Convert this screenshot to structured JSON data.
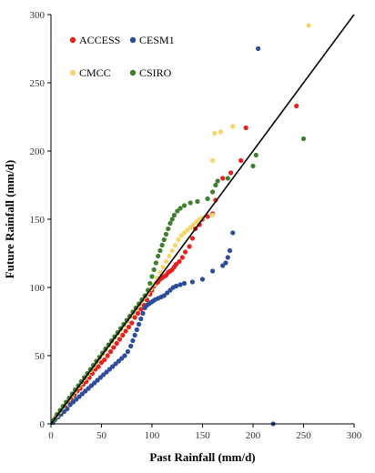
{
  "chart_data": {
    "type": "scatter",
    "xlabel": "Past Rainfall (mm/d)",
    "ylabel": "Future Rainfall (mm/d)",
    "xlim": [
      0,
      300
    ],
    "ylim": [
      0,
      300
    ],
    "xticks": [
      "0",
      "50",
      "100",
      "150",
      "200",
      "250",
      "300"
    ],
    "yticks": [
      "0",
      "50",
      "100",
      "150",
      "200",
      "250",
      "300"
    ],
    "grid": false,
    "legend_placement": "top-left",
    "reference_line": {
      "x": [
        0,
        300
      ],
      "y": [
        0,
        300
      ],
      "color": "#000000"
    },
    "series": [
      {
        "name": "ACCESS",
        "color": "#e8201f",
        "points": [
          [
            2,
            2
          ],
          [
            5,
            5
          ],
          [
            8,
            7
          ],
          [
            11,
            10
          ],
          [
            14,
            13
          ],
          [
            17,
            16
          ],
          [
            20,
            18
          ],
          [
            23,
            21
          ],
          [
            26,
            24
          ],
          [
            29,
            26
          ],
          [
            32,
            29
          ],
          [
            35,
            31
          ],
          [
            38,
            34
          ],
          [
            41,
            37
          ],
          [
            44,
            40
          ],
          [
            47,
            42
          ],
          [
            50,
            45
          ],
          [
            53,
            47
          ],
          [
            56,
            50
          ],
          [
            59,
            53
          ],
          [
            62,
            56
          ],
          [
            65,
            59
          ],
          [
            68,
            62
          ],
          [
            71,
            65
          ],
          [
            74,
            68
          ],
          [
            77,
            71
          ],
          [
            80,
            74
          ],
          [
            83,
            78
          ],
          [
            86,
            81
          ],
          [
            89,
            84
          ],
          [
            92,
            87
          ],
          [
            95,
            91
          ],
          [
            98,
            95
          ],
          [
            100,
            98
          ],
          [
            102,
            101
          ],
          [
            104,
            103
          ],
          [
            106,
            104
          ],
          [
            108,
            106
          ],
          [
            110,
            107
          ],
          [
            112,
            108
          ],
          [
            114,
            109
          ],
          [
            116,
            111
          ],
          [
            118,
            112
          ],
          [
            120,
            113
          ],
          [
            122,
            115
          ],
          [
            124,
            117
          ],
          [
            127,
            119
          ],
          [
            130,
            122
          ],
          [
            133,
            126
          ],
          [
            137,
            130
          ],
          [
            140,
            136
          ],
          [
            143,
            143
          ],
          [
            147,
            146
          ],
          [
            150,
            150
          ],
          [
            155,
            152
          ],
          [
            160,
            154
          ],
          [
            163,
            164
          ],
          [
            170,
            180
          ],
          [
            178,
            184
          ],
          [
            188,
            193
          ],
          [
            193,
            217
          ],
          [
            243,
            233
          ]
        ]
      },
      {
        "name": "CESM1",
        "color": "#2b4d9c",
        "points": [
          [
            2,
            1
          ],
          [
            4,
            3
          ],
          [
            7,
            5
          ],
          [
            10,
            7
          ],
          [
            13,
            9
          ],
          [
            16,
            11
          ],
          [
            19,
            14
          ],
          [
            22,
            16
          ],
          [
            25,
            18
          ],
          [
            28,
            20
          ],
          [
            31,
            22
          ],
          [
            34,
            24
          ],
          [
            37,
            26
          ],
          [
            40,
            28
          ],
          [
            43,
            30
          ],
          [
            46,
            32
          ],
          [
            49,
            34
          ],
          [
            52,
            36
          ],
          [
            55,
            38
          ],
          [
            58,
            40
          ],
          [
            61,
            42
          ],
          [
            64,
            44
          ],
          [
            67,
            46
          ],
          [
            70,
            48
          ],
          [
            73,
            50
          ],
          [
            76,
            53
          ],
          [
            79,
            57
          ],
          [
            81,
            61
          ],
          [
            83,
            65
          ],
          [
            85,
            69
          ],
          [
            87,
            73
          ],
          [
            89,
            77
          ],
          [
            91,
            81
          ],
          [
            93,
            85
          ],
          [
            95,
            87
          ],
          [
            97,
            88
          ],
          [
            99,
            89
          ],
          [
            101,
            90
          ],
          [
            103,
            91
          ],
          [
            106,
            92
          ],
          [
            109,
            93
          ],
          [
            112,
            94
          ],
          [
            115,
            96
          ],
          [
            118,
            98
          ],
          [
            121,
            100
          ],
          [
            124,
            101
          ],
          [
            128,
            102
          ],
          [
            132,
            103
          ],
          [
            140,
            104
          ],
          [
            150,
            106
          ],
          [
            160,
            112
          ],
          [
            170,
            116
          ],
          [
            173,
            118
          ],
          [
            175,
            122
          ],
          [
            177,
            127
          ],
          [
            180,
            140
          ],
          [
            205,
            275
          ],
          [
            220,
            0
          ]
        ]
      },
      {
        "name": "CMCC",
        "color": "#f6d66a",
        "points": [
          [
            3,
            3
          ],
          [
            6,
            6
          ],
          [
            9,
            9
          ],
          [
            12,
            12
          ],
          [
            15,
            15
          ],
          [
            18,
            18
          ],
          [
            21,
            21
          ],
          [
            24,
            24
          ],
          [
            27,
            27
          ],
          [
            30,
            30
          ],
          [
            33,
            33
          ],
          [
            36,
            36
          ],
          [
            39,
            39
          ],
          [
            42,
            42
          ],
          [
            45,
            45
          ],
          [
            48,
            48
          ],
          [
            51,
            51
          ],
          [
            54,
            54
          ],
          [
            57,
            57
          ],
          [
            60,
            60
          ],
          [
            63,
            63
          ],
          [
            66,
            66
          ],
          [
            69,
            69
          ],
          [
            72,
            72
          ],
          [
            75,
            75
          ],
          [
            78,
            78
          ],
          [
            81,
            81
          ],
          [
            84,
            84
          ],
          [
            87,
            87
          ],
          [
            90,
            90
          ],
          [
            93,
            93
          ],
          [
            96,
            96
          ],
          [
            99,
            99
          ],
          [
            102,
            102
          ],
          [
            105,
            107
          ],
          [
            108,
            111
          ],
          [
            111,
            115
          ],
          [
            114,
            119
          ],
          [
            117,
            123
          ],
          [
            120,
            127
          ],
          [
            123,
            131
          ],
          [
            126,
            135
          ],
          [
            129,
            138
          ],
          [
            132,
            140
          ],
          [
            135,
            142
          ],
          [
            138,
            144
          ],
          [
            141,
            146
          ],
          [
            144,
            148
          ],
          [
            147,
            150
          ],
          [
            150,
            151
          ],
          [
            160,
            153
          ],
          [
            160,
            193
          ],
          [
            162,
            213
          ],
          [
            168,
            214
          ],
          [
            180,
            218
          ],
          [
            255,
            292
          ]
        ]
      },
      {
        "name": "CSIRO",
        "color": "#3f7f2f",
        "points": [
          [
            3,
            3
          ],
          [
            6,
            7
          ],
          [
            9,
            10
          ],
          [
            12,
            13
          ],
          [
            15,
            16
          ],
          [
            18,
            19
          ],
          [
            21,
            22
          ],
          [
            24,
            25
          ],
          [
            27,
            28
          ],
          [
            30,
            31
          ],
          [
            33,
            34
          ],
          [
            36,
            37
          ],
          [
            39,
            40
          ],
          [
            42,
            43
          ],
          [
            45,
            46
          ],
          [
            48,
            49
          ],
          [
            51,
            52
          ],
          [
            54,
            55
          ],
          [
            57,
            58
          ],
          [
            60,
            61
          ],
          [
            63,
            64
          ],
          [
            66,
            67
          ],
          [
            69,
            70
          ],
          [
            72,
            73
          ],
          [
            75,
            76
          ],
          [
            78,
            79
          ],
          [
            81,
            82
          ],
          [
            84,
            85
          ],
          [
            87,
            88
          ],
          [
            90,
            91
          ],
          [
            93,
            94
          ],
          [
            96,
            98
          ],
          [
            98,
            103
          ],
          [
            100,
            108
          ],
          [
            102,
            113
          ],
          [
            104,
            118
          ],
          [
            106,
            123
          ],
          [
            108,
            127
          ],
          [
            110,
            131
          ],
          [
            112,
            135
          ],
          [
            114,
            139
          ],
          [
            116,
            143
          ],
          [
            118,
            147
          ],
          [
            120,
            150
          ],
          [
            122,
            153
          ],
          [
            125,
            156
          ],
          [
            128,
            158
          ],
          [
            132,
            160
          ],
          [
            138,
            162
          ],
          [
            145,
            163
          ],
          [
            155,
            165
          ],
          [
            160,
            170
          ],
          [
            163,
            175
          ],
          [
            165,
            178
          ],
          [
            175,
            180
          ],
          [
            200,
            189
          ],
          [
            203,
            197
          ],
          [
            250,
            209
          ]
        ]
      }
    ]
  }
}
